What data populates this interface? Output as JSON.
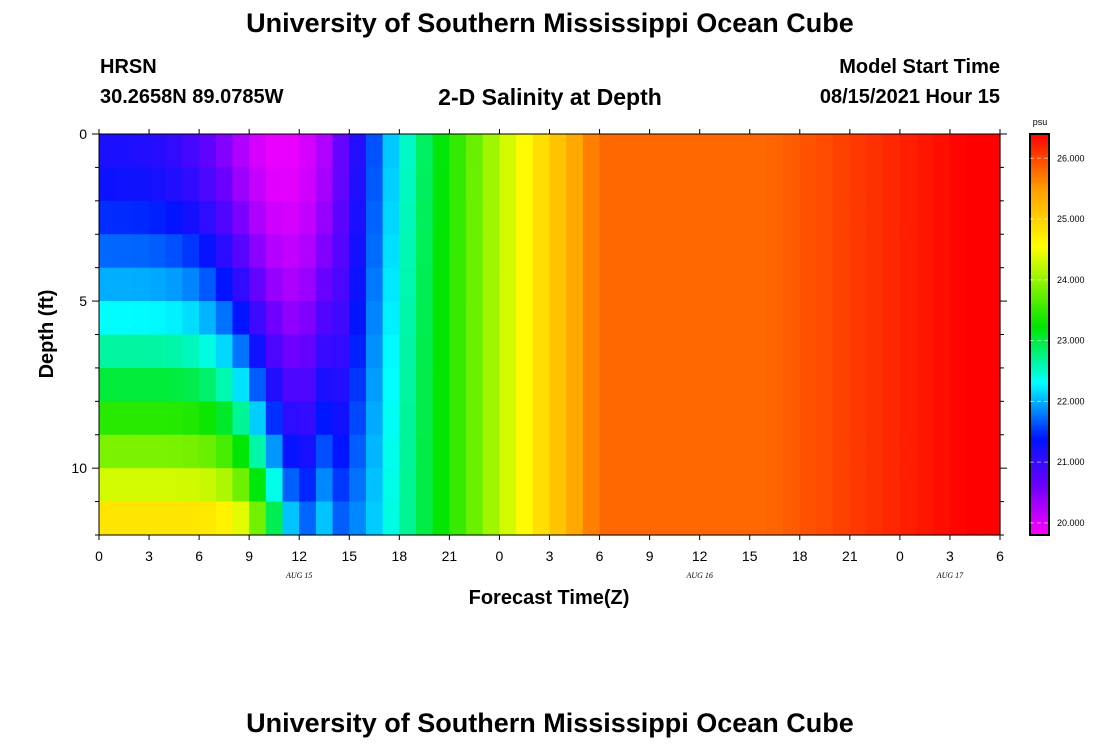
{
  "header": {
    "title_top": "University of Southern Mississippi Ocean Cube",
    "station": "HRSN",
    "coords": "30.2658N  89.0785W",
    "plot_title": "2-D Salinity at Depth",
    "model_start_label": "Model Start Time",
    "model_start_value": "08/15/2021 Hour 15",
    "title_bottom": "University of Southern Mississippi Ocean Cube"
  },
  "chart_data": {
    "type": "heatmap",
    "title": "2-D Salinity at Depth",
    "xlabel": "Forecast Time(Z)",
    "ylabel": "Depth (ft)",
    "x_tick_labels": [
      "0",
      "3",
      "6",
      "9",
      "12",
      "15",
      "18",
      "21",
      "0",
      "3",
      "6",
      "9",
      "12",
      "15",
      "18",
      "21",
      "0",
      "3",
      "6"
    ],
    "x_range_hours": [
      0,
      54
    ],
    "date_labels": [
      {
        "label": "AUG 15",
        "hour": 12
      },
      {
        "label": "AUG 16",
        "hour": 36
      },
      {
        "label": "AUG 17",
        "hour": 51
      }
    ],
    "y_tick_labels": [
      "0",
      "5",
      "10"
    ],
    "y_tick_values": [
      0,
      5,
      10
    ],
    "y_range_ft": [
      0,
      12
    ],
    "depth_levels_ft": [
      0.5,
      1.5,
      2.5,
      3.5,
      4.5,
      5.5,
      6.5,
      7.5,
      8.5,
      9.5,
      10.5,
      11.5
    ],
    "colorbar": {
      "unit": "psu",
      "range": [
        19.8,
        26.4
      ],
      "tick_labels": [
        "20.000",
        "21.000",
        "22.000",
        "23.000",
        "24.000",
        "25.000",
        "26.000"
      ],
      "tick_values": [
        20,
        21,
        22,
        23,
        24,
        25,
        26
      ]
    },
    "salinity_profile": {
      "surface_min_psu": 19.9,
      "surface_min_hour": 11,
      "deep_min_psu": 21.7,
      "deep_min_hour": 12.5,
      "mid_plateau_psu": 25.8,
      "end_psu": 26.4,
      "bottom_start_psu": 24.8
    }
  }
}
